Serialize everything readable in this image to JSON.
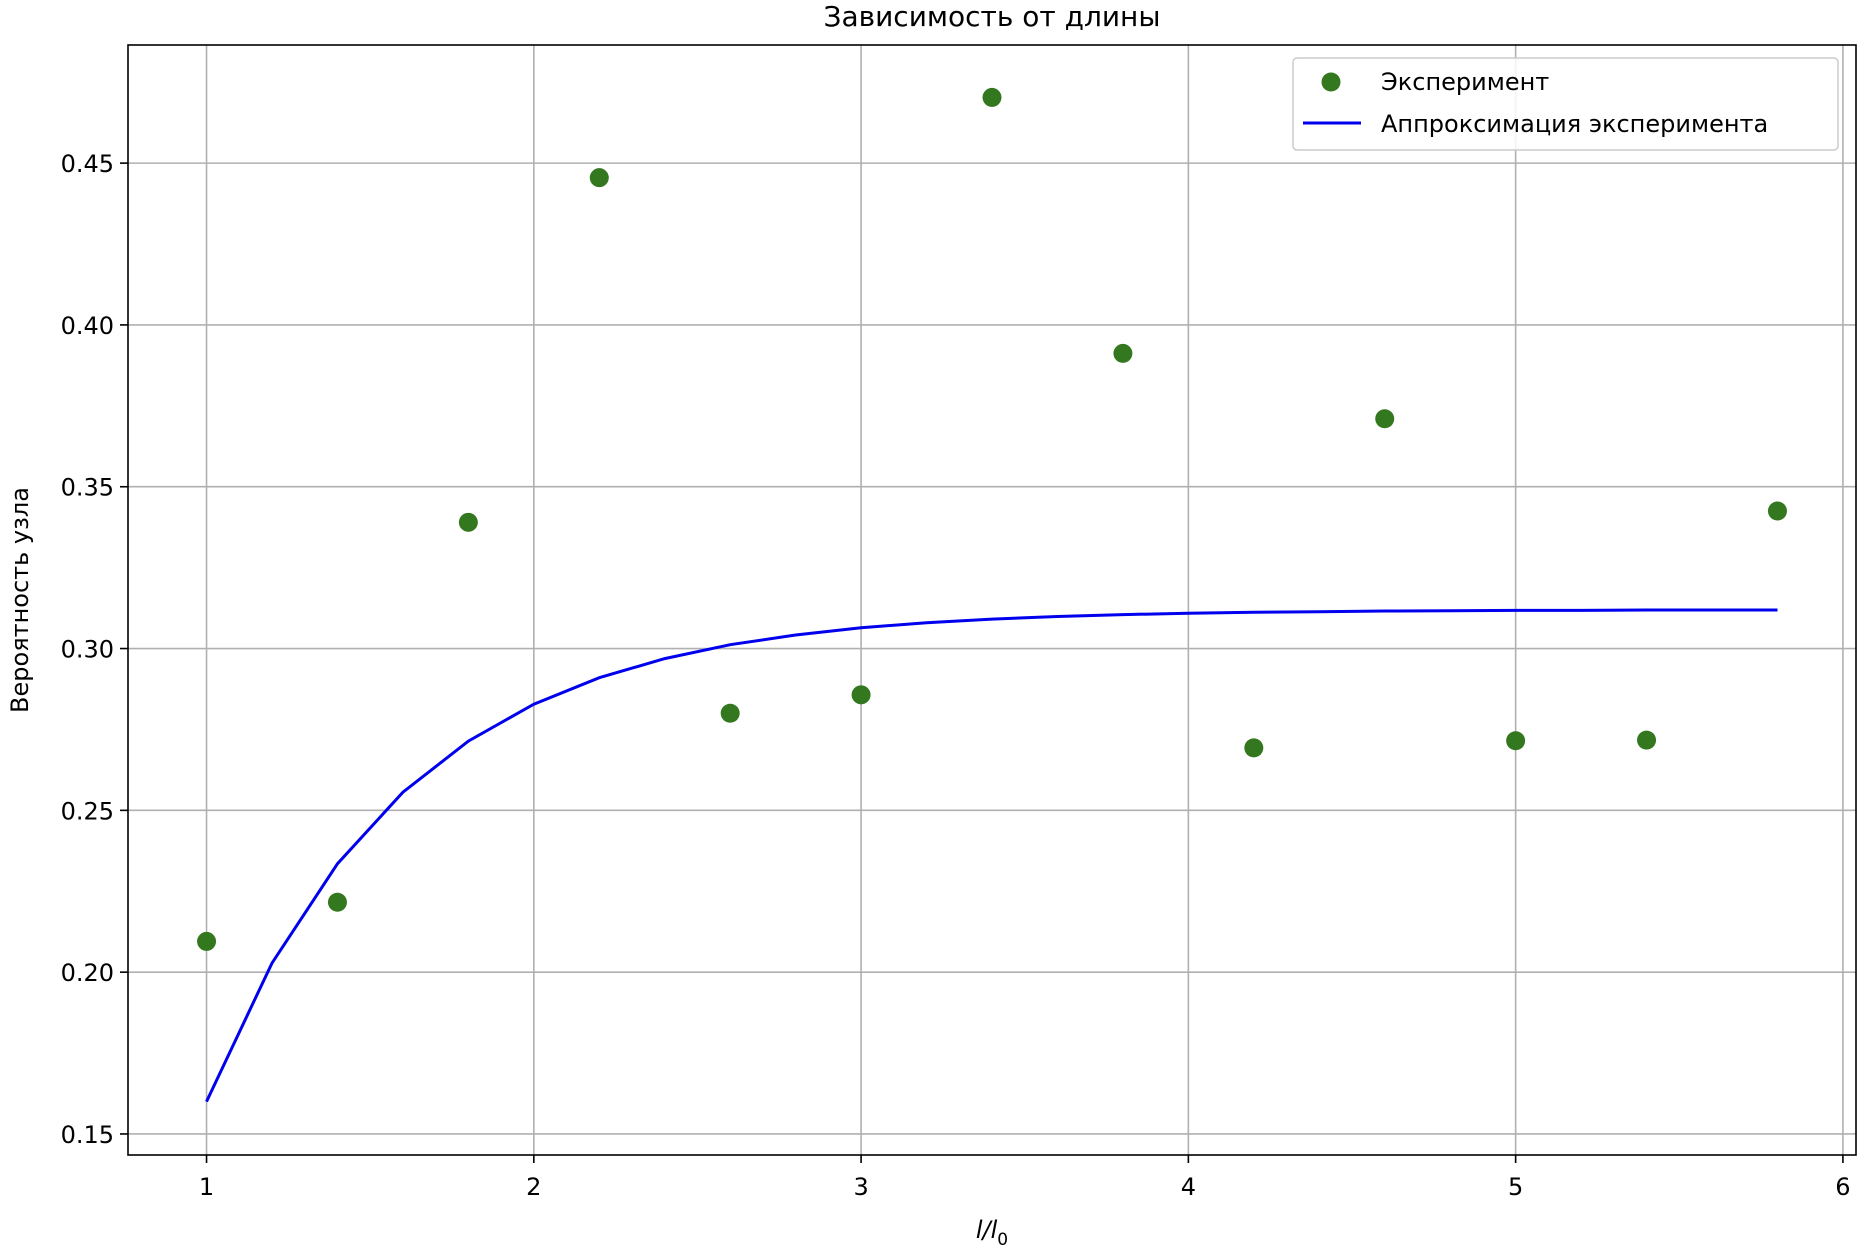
{
  "chart_data": {
    "type": "scatter",
    "title": "Зависимость от длины",
    "xlabel": {
      "main": "l/l",
      "sub": "0"
    },
    "ylabel": "Вероятность узла",
    "xlim": [
      0.76,
      6.04
    ],
    "ylim": [
      0.1435,
      0.4865
    ],
    "xticks": [
      "1",
      "2",
      "3",
      "4",
      "5",
      "6"
    ],
    "yticks": [
      "0.15",
      "0.20",
      "0.25",
      "0.30",
      "0.35",
      "0.40",
      "0.45"
    ],
    "grid": true,
    "legend_position": "top-right",
    "series": [
      {
        "name": "Эксперимент",
        "kind": "scatter",
        "color": "#33771f",
        "x": [
          1.0,
          1.4,
          1.8,
          2.2,
          2.6,
          3.0,
          3.4,
          3.8,
          4.2,
          4.6,
          5.0,
          5.4,
          5.8
        ],
        "y": [
          0.2095,
          0.2216,
          0.339,
          0.4455,
          0.28,
          0.2857,
          0.4703,
          0.3912,
          0.2693,
          0.371,
          0.2715,
          0.2717,
          0.3425
        ]
      },
      {
        "name": "Аппроксимация эксперимента",
        "kind": "line",
        "color": "#0000ee",
        "x": [
          1.0,
          1.2,
          1.4,
          1.6,
          1.8,
          2.0,
          2.2,
          2.4,
          2.6,
          2.8,
          3.0,
          3.2,
          3.4,
          3.6,
          3.8,
          4.0,
          4.2,
          4.4,
          4.6,
          4.8,
          5.0,
          5.2,
          5.4,
          5.6,
          5.8
        ],
        "y": [
          0.16,
          0.2028,
          0.2335,
          0.2556,
          0.2714,
          0.2828,
          0.291,
          0.2969,
          0.3012,
          0.3042,
          0.3064,
          0.308,
          0.3091,
          0.3099,
          0.3105,
          0.3109,
          0.3112,
          0.3114,
          0.3116,
          0.3117,
          0.3118,
          0.3118,
          0.3119,
          0.3119,
          0.3119
        ]
      }
    ]
  }
}
